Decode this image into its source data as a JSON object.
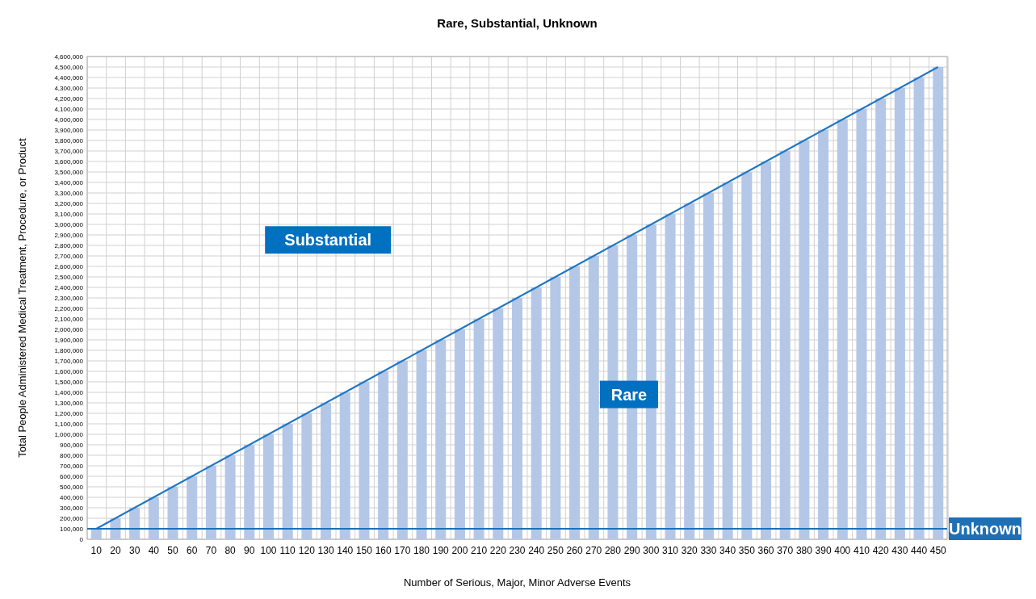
{
  "chart_data": {
    "type": "bar",
    "title": "Rare, Substantial, Unknown",
    "xlabel": "Number of Serious, Major, Minor Adverse Events",
    "ylabel": "Total People Administered Medical Treatment, Procedure, or Product",
    "categories": [
      "10",
      "20",
      "30",
      "40",
      "50",
      "60",
      "70",
      "80",
      "90",
      "100",
      "110",
      "120",
      "130",
      "140",
      "150",
      "160",
      "170",
      "180",
      "190",
      "200",
      "210",
      "220",
      "230",
      "240",
      "250",
      "260",
      "270",
      "280",
      "290",
      "300",
      "310",
      "320",
      "330",
      "340",
      "350",
      "360",
      "370",
      "380",
      "390",
      "400",
      "410",
      "420",
      "430",
      "440",
      "450"
    ],
    "series": [
      {
        "color": "#b4c7e7",
        "values": [
          100000,
          200000,
          300000,
          400000,
          500000,
          600000,
          700000,
          800000,
          900000,
          1000000,
          1100000,
          1200000,
          1300000,
          1400000,
          1500000,
          1600000,
          1700000,
          1800000,
          1900000,
          2000000,
          2100000,
          2200000,
          2300000,
          2400000,
          2500000,
          2600000,
          2700000,
          2800000,
          2900000,
          3000000,
          3100000,
          3200000,
          3300000,
          3400000,
          3500000,
          3600000,
          3700000,
          3800000,
          3900000,
          4000000,
          4100000,
          4200000,
          4300000,
          4400000,
          4500000
        ]
      },
      {
        "type": "line",
        "color": "#1f77c4",
        "values": [
          100000,
          200000,
          300000,
          400000,
          500000,
          600000,
          700000,
          800000,
          900000,
          1000000,
          1100000,
          1200000,
          1300000,
          1400000,
          1500000,
          1600000,
          1700000,
          1800000,
          1900000,
          2000000,
          2100000,
          2200000,
          2300000,
          2400000,
          2500000,
          2600000,
          2700000,
          2800000,
          2900000,
          3000000,
          3100000,
          3200000,
          3300000,
          3400000,
          3500000,
          3600000,
          3700000,
          3800000,
          3900000,
          4000000,
          4100000,
          4200000,
          4300000,
          4400000,
          4500000
        ]
      }
    ],
    "ylim": [
      0,
      4600000
    ],
    "yticks": [
      0,
      {
        "value": 100000,
        "label": "100,000"
      },
      {
        "value": 200000,
        "label": "200,000"
      },
      {
        "value": 300000,
        "label": "300,000"
      },
      {
        "value": 400000,
        "label": "400,000"
      },
      {
        "value": 500000,
        "label": "500,000"
      },
      {
        "value": 600000,
        "label": "600,000"
      },
      {
        "value": 700000,
        "label": "700,000"
      },
      {
        "value": 800000,
        "label": "800,000"
      },
      {
        "value": 900000,
        "label": "900,000"
      },
      {
        "value": 1000000,
        "label": "1,000,000"
      },
      {
        "value": 1100000,
        "label": "1,100,000"
      },
      {
        "value": 1200000,
        "label": "1,200,000"
      },
      {
        "value": 1300000,
        "label": "1,300,000"
      },
      {
        "value": 1400000,
        "label": "1,400,000"
      },
      {
        "value": 1500000,
        "label": "1,500,000"
      },
      {
        "value": 1600000,
        "label": "1,600,000"
      },
      {
        "value": 1700000,
        "label": "1,700,000"
      },
      {
        "value": 1800000,
        "label": "1,800,000"
      },
      {
        "value": 1900000,
        "label": "1,900,000"
      },
      {
        "value": 2000000,
        "label": "2,000,000"
      },
      {
        "value": 2100000,
        "label": "2,100,000"
      },
      {
        "value": 2200000,
        "label": "2,200,000"
      },
      {
        "value": 2300000,
        "label": "2,300,000"
      },
      {
        "value": 2400000,
        "label": "2,400,000"
      },
      {
        "value": 2500000,
        "label": "2,500,000"
      },
      {
        "value": 2600000,
        "label": "2,600,000"
      },
      {
        "value": 2700000,
        "label": "2,700,000"
      },
      {
        "value": 2800000,
        "label": "2,800,000"
      },
      {
        "value": 2900000,
        "label": "2,900,000"
      },
      {
        "value": 3000000,
        "label": "3,000,000"
      },
      {
        "value": 3100000,
        "label": "3,100,000"
      },
      {
        "value": 3200000,
        "label": "3,200,000"
      },
      {
        "value": 3300000,
        "label": "3,300,000"
      },
      {
        "value": 3400000,
        "label": "3,400,000"
      },
      {
        "value": 3500000,
        "label": "3,500,000"
      },
      {
        "value": 3600000,
        "label": "3,600,000"
      },
      {
        "value": 3700000,
        "label": "3,700,000"
      },
      {
        "value": 3800000,
        "label": "3,800,000"
      },
      {
        "value": 3900000,
        "label": "3,900,000"
      },
      {
        "value": 4000000,
        "label": "4,000,000"
      },
      {
        "value": 4100000,
        "label": "4,100,000"
      },
      {
        "value": 4200000,
        "label": "4,200,000"
      },
      {
        "value": 4300000,
        "label": "4,300,000"
      },
      {
        "value": 4400000,
        "label": "4,400,000"
      },
      {
        "value": 4500000,
        "label": "4,500,000"
      },
      {
        "value": 4600000,
        "label": "4,600,000"
      }
    ],
    "grid": true,
    "ref_lines": [
      {
        "axis": "y",
        "value": 100000,
        "label": "Unknown",
        "color": "#1f6fb5"
      }
    ],
    "annotations": [
      "Substantial",
      "Rare"
    ]
  }
}
